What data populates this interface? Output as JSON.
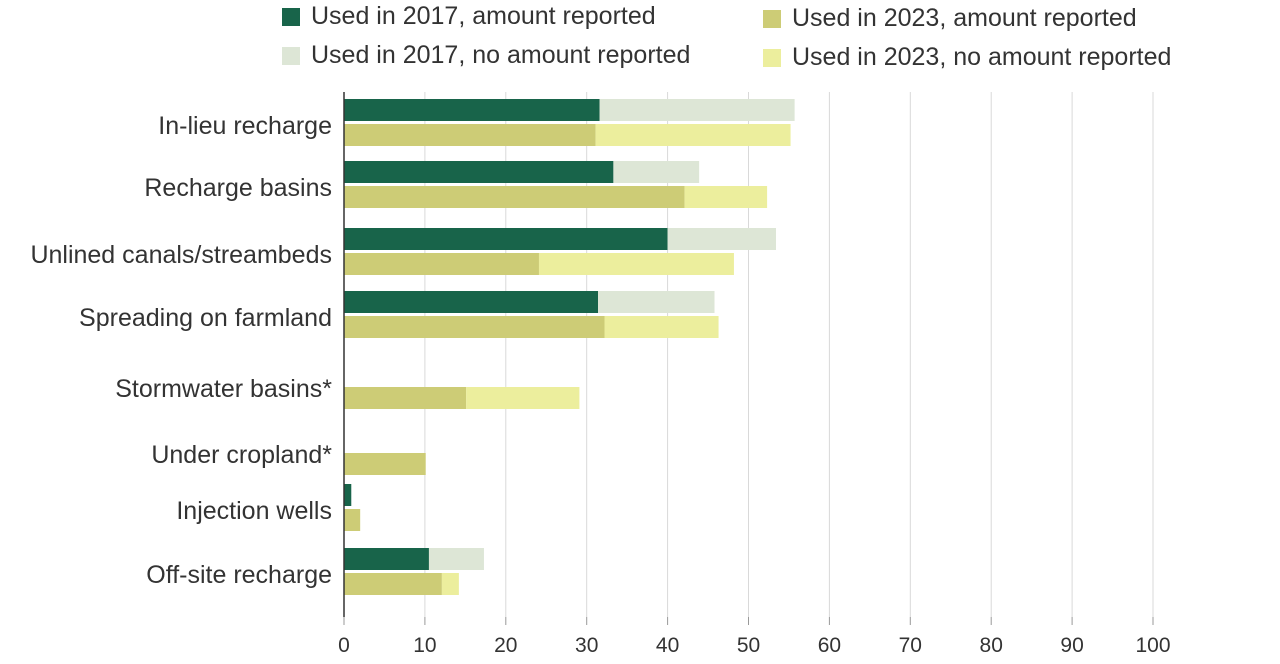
{
  "chart_data": {
    "type": "bar",
    "orientation": "horizontal",
    "stacked": true,
    "categories": [
      "In-lieu recharge",
      "Recharge basins",
      "Unlined canals/streambeds",
      "Spreading on farmland",
      "Stormwater basins*",
      "Under cropland*",
      "Injection wells",
      "Off-site recharge"
    ],
    "series": [
      {
        "name": "Used in 2017, amount reported",
        "group": "2017",
        "color": "#18644a",
        "values": [
          31.6,
          33.3,
          40.0,
          31.4,
          0,
          0,
          0.9,
          10.5
        ]
      },
      {
        "name": "Used in 2017, no amount reported",
        "group": "2017",
        "color": "#dde6d6",
        "values": [
          24.1,
          10.6,
          13.4,
          14.4,
          0,
          0,
          0,
          6.8
        ]
      },
      {
        "name": "Used in 2023, amount reported",
        "group": "2023",
        "color": "#cdcc76",
        "values": [
          31.1,
          42.1,
          24.1,
          32.2,
          15.1,
          10.1,
          2.0,
          12.1
        ]
      },
      {
        "name": "Used in 2023, no amount reported",
        "group": "2023",
        "color": "#ecee9d",
        "values": [
          24.1,
          10.2,
          24.1,
          14.1,
          14.0,
          0,
          0,
          2.1
        ]
      }
    ],
    "xlim": [
      0,
      100
    ],
    "xticks": [
      "0",
      "10",
      "20",
      "30",
      "40",
      "50",
      "60",
      "70",
      "80",
      "90",
      "100"
    ],
    "grid": "vertical",
    "legend_position": "top",
    "xlabel": "",
    "ylabel": "",
    "title": ""
  }
}
